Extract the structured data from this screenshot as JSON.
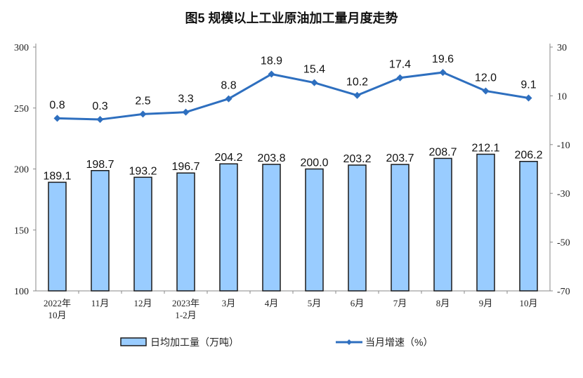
{
  "chart_data": {
    "type": "bar+line",
    "title": "图5  规模以上工业原油加工量月度走势",
    "categories": [
      [
        "2022年",
        "10月"
      ],
      [
        "11月"
      ],
      [
        "12月"
      ],
      [
        "2023年",
        "1-2月"
      ],
      [
        "3月"
      ],
      [
        "4月"
      ],
      [
        "5月"
      ],
      [
        "6月"
      ],
      [
        "7月"
      ],
      [
        "8月"
      ],
      [
        "9月"
      ],
      [
        "10月"
      ]
    ],
    "series": [
      {
        "name": "日均加工量（万吨）",
        "type": "bar",
        "axis": "left",
        "color": "#99ccff",
        "stroke": "#1a1a1a",
        "values": [
          189.1,
          198.7,
          193.2,
          196.7,
          204.2,
          203.8,
          200.0,
          203.2,
          203.7,
          208.7,
          212.1,
          206.2
        ],
        "labels": [
          "189.1",
          "198.7",
          "193.2",
          "196.7",
          "204.2",
          "203.8",
          "200.0",
          "203.2",
          "203.7",
          "208.7",
          "212.1",
          "206.2"
        ]
      },
      {
        "name": "当月增速（%）",
        "type": "line",
        "axis": "right",
        "color": "#2e6fbf",
        "values": [
          0.8,
          0.3,
          2.5,
          3.3,
          8.8,
          18.9,
          15.4,
          10.2,
          17.4,
          19.6,
          12.0,
          9.1
        ],
        "labels": [
          "0.8",
          "0.3",
          "2.5",
          "3.3",
          "8.8",
          "18.9",
          "15.4",
          "10.2",
          "17.4",
          "19.6",
          "12.0",
          "9.1"
        ]
      }
    ],
    "left_axis": {
      "ylim": [
        100,
        300
      ],
      "ticks": [
        "100",
        "150",
        "200",
        "250",
        "300"
      ]
    },
    "right_axis": {
      "ylim": [
        -70,
        30
      ],
      "ticks": [
        "30",
        "10",
        "-10",
        "-30",
        "-50",
        "-70"
      ]
    },
    "legend_position": "bottom",
    "grid": false
  }
}
